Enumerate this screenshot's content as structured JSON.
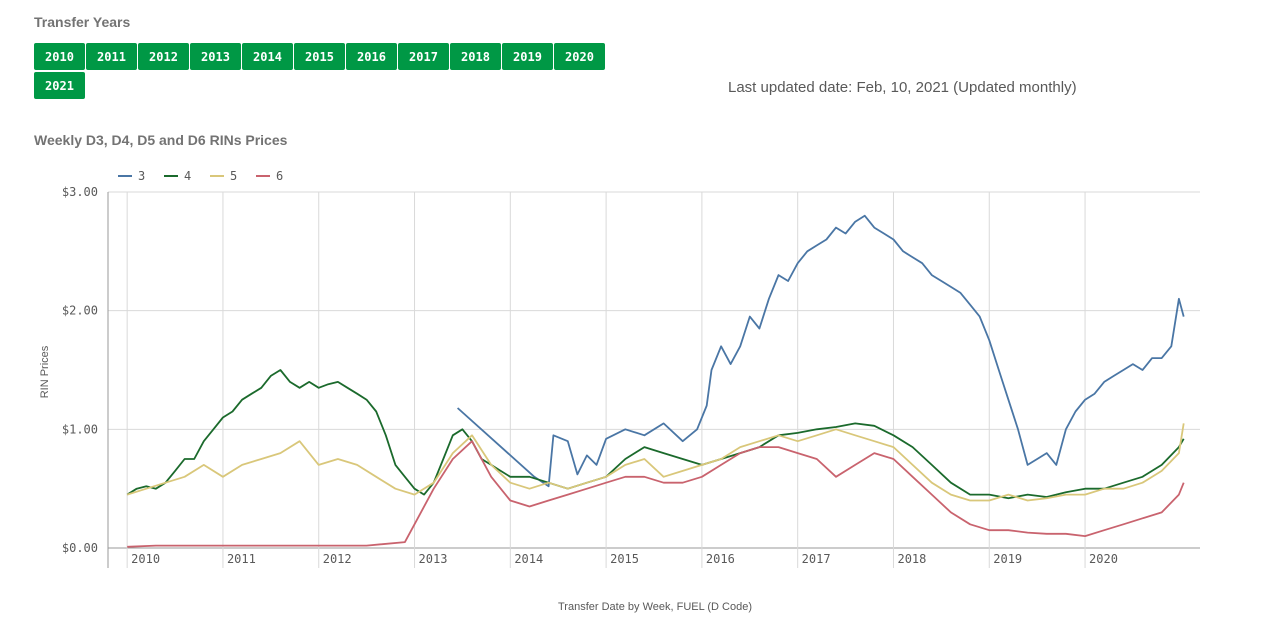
{
  "filter": {
    "title": "Transfer Years",
    "years": [
      "2010",
      "2011",
      "2012",
      "2013",
      "2014",
      "2015",
      "2016",
      "2017",
      "2018",
      "2019",
      "2020",
      "2021"
    ]
  },
  "last_updated": "Last updated date: Feb, 10, 2021 (Updated monthly)",
  "colors": {
    "button": "#009845",
    "d3": "#4a76a5",
    "d4": "#1b6a2c",
    "d5": "#d9c77a",
    "d6": "#c9636e",
    "grid": "#d9d9d9"
  },
  "chart_data": {
    "type": "line",
    "title": "Weekly D3, D4, D5 and D6 RINs Prices",
    "xlabel": "Transfer Date by Week, FUEL (D Code)",
    "ylabel": "RIN Prices",
    "ylim": [
      0,
      3
    ],
    "xlim": [
      2009.8,
      2021.2
    ],
    "y_ticks": [
      0,
      1,
      2,
      3
    ],
    "y_tick_labels": [
      "$0.00",
      "$1.00",
      "$2.00",
      "$3.00"
    ],
    "x_ticks": [
      2010,
      2011,
      2012,
      2013,
      2014,
      2015,
      2016,
      2017,
      2018,
      2019,
      2020
    ],
    "x_tick_labels": [
      "2010",
      "2011",
      "2012",
      "2013",
      "2014",
      "2015",
      "2016",
      "2017",
      "2018",
      "2019",
      "2020"
    ],
    "grid": true,
    "legend_position": "top-left",
    "series": [
      {
        "name": "3",
        "color": "#4a76a5",
        "x": [
          2013.45,
          2014.25,
          2014.4,
          2014.45,
          2014.6,
          2014.7,
          2014.8,
          2014.9,
          2015.0,
          2015.2,
          2015.4,
          2015.6,
          2015.8,
          2015.95,
          2016.05,
          2016.1,
          2016.2,
          2016.3,
          2016.4,
          2016.5,
          2016.6,
          2016.7,
          2016.8,
          2016.9,
          2017.0,
          2017.1,
          2017.2,
          2017.3,
          2017.4,
          2017.5,
          2017.6,
          2017.7,
          2017.8,
          2017.9,
          2018.0,
          2018.1,
          2018.2,
          2018.3,
          2018.4,
          2018.5,
          2018.6,
          2018.7,
          2018.8,
          2018.9,
          2019.0,
          2019.1,
          2019.2,
          2019.3,
          2019.4,
          2019.5,
          2019.6,
          2019.7,
          2019.8,
          2019.9,
          2020.0,
          2020.1,
          2020.2,
          2020.3,
          2020.4,
          2020.5,
          2020.6,
          2020.7,
          2020.8,
          2020.9,
          2020.98,
          2021.03
        ],
        "y": [
          1.18,
          0.6,
          0.52,
          0.95,
          0.9,
          0.62,
          0.78,
          0.7,
          0.92,
          1.0,
          0.95,
          1.05,
          0.9,
          1.0,
          1.2,
          1.5,
          1.7,
          1.55,
          1.7,
          1.95,
          1.85,
          2.1,
          2.3,
          2.25,
          2.4,
          2.5,
          2.55,
          2.6,
          2.7,
          2.65,
          2.75,
          2.8,
          2.7,
          2.65,
          2.6,
          2.5,
          2.45,
          2.4,
          2.3,
          2.25,
          2.2,
          2.15,
          2.05,
          1.95,
          1.75,
          1.5,
          1.25,
          1.0,
          0.7,
          0.75,
          0.8,
          0.7,
          1.0,
          1.15,
          1.25,
          1.3,
          1.4,
          1.45,
          1.5,
          1.55,
          1.5,
          1.6,
          1.6,
          1.7,
          2.1,
          1.95
        ]
      },
      {
        "name": "4",
        "color": "#1b6a2c",
        "x": [
          2010.0,
          2010.1,
          2010.2,
          2010.3,
          2010.4,
          2010.5,
          2010.6,
          2010.7,
          2010.8,
          2010.9,
          2011.0,
          2011.1,
          2011.2,
          2011.3,
          2011.4,
          2011.5,
          2011.6,
          2011.7,
          2011.8,
          2011.9,
          2012.0,
          2012.1,
          2012.2,
          2012.3,
          2012.4,
          2012.5,
          2012.6,
          2012.7,
          2012.8,
          2012.9,
          2013.0,
          2013.1,
          2013.2,
          2013.3,
          2013.4,
          2013.5,
          2013.6,
          2013.7,
          2013.8,
          2013.9,
          2014.0,
          2014.2,
          2014.4,
          2014.6,
          2014.8,
          2015.0,
          2015.2,
          2015.4,
          2015.6,
          2015.8,
          2016.0,
          2016.2,
          2016.4,
          2016.6,
          2016.8,
          2017.0,
          2017.2,
          2017.4,
          2017.6,
          2017.8,
          2018.0,
          2018.2,
          2018.4,
          2018.6,
          2018.8,
          2019.0,
          2019.2,
          2019.4,
          2019.6,
          2019.8,
          2020.0,
          2020.2,
          2020.4,
          2020.6,
          2020.8,
          2020.98,
          2021.03
        ],
        "y": [
          0.45,
          0.5,
          0.52,
          0.5,
          0.55,
          0.65,
          0.75,
          0.75,
          0.9,
          1.0,
          1.1,
          1.15,
          1.25,
          1.3,
          1.35,
          1.45,
          1.5,
          1.4,
          1.35,
          1.4,
          1.35,
          1.38,
          1.4,
          1.35,
          1.3,
          1.25,
          1.15,
          0.95,
          0.7,
          0.6,
          0.5,
          0.45,
          0.55,
          0.75,
          0.95,
          1.0,
          0.9,
          0.75,
          0.7,
          0.65,
          0.6,
          0.6,
          0.55,
          0.5,
          0.55,
          0.6,
          0.75,
          0.85,
          0.8,
          0.75,
          0.7,
          0.75,
          0.8,
          0.85,
          0.95,
          0.97,
          1.0,
          1.02,
          1.05,
          1.03,
          0.95,
          0.85,
          0.7,
          0.55,
          0.45,
          0.45,
          0.42,
          0.45,
          0.43,
          0.47,
          0.5,
          0.5,
          0.55,
          0.6,
          0.7,
          0.85,
          0.92
        ]
      },
      {
        "name": "5",
        "color": "#d9c77a",
        "x": [
          2010.0,
          2010.2,
          2010.4,
          2010.6,
          2010.8,
          2011.0,
          2011.2,
          2011.4,
          2011.6,
          2011.8,
          2012.0,
          2012.2,
          2012.4,
          2012.6,
          2012.8,
          2013.0,
          2013.2,
          2013.4,
          2013.6,
          2013.8,
          2014.0,
          2014.2,
          2014.4,
          2014.6,
          2014.8,
          2015.0,
          2015.2,
          2015.4,
          2015.6,
          2015.8,
          2016.0,
          2016.2,
          2016.4,
          2016.6,
          2016.8,
          2017.0,
          2017.2,
          2017.4,
          2017.6,
          2017.8,
          2018.0,
          2018.2,
          2018.4,
          2018.6,
          2018.8,
          2019.0,
          2019.2,
          2019.4,
          2019.6,
          2019.8,
          2020.0,
          2020.2,
          2020.4,
          2020.6,
          2020.8,
          2020.98,
          2021.03
        ],
        "y": [
          0.45,
          0.5,
          0.55,
          0.6,
          0.7,
          0.6,
          0.7,
          0.75,
          0.8,
          0.9,
          0.7,
          0.75,
          0.7,
          0.6,
          0.5,
          0.45,
          0.55,
          0.8,
          0.95,
          0.7,
          0.55,
          0.5,
          0.55,
          0.5,
          0.55,
          0.6,
          0.7,
          0.75,
          0.6,
          0.65,
          0.7,
          0.75,
          0.85,
          0.9,
          0.95,
          0.9,
          0.95,
          1.0,
          0.95,
          0.9,
          0.85,
          0.7,
          0.55,
          0.45,
          0.4,
          0.4,
          0.45,
          0.4,
          0.42,
          0.45,
          0.45,
          0.5,
          0.5,
          0.55,
          0.65,
          0.8,
          1.05
        ]
      },
      {
        "name": "6",
        "color": "#c9636e",
        "x": [
          2010.0,
          2010.3,
          2010.6,
          2010.8,
          2011.0,
          2011.5,
          2012.0,
          2012.5,
          2012.9,
          2013.0,
          2013.2,
          2013.4,
          2013.6,
          2013.8,
          2014.0,
          2014.2,
          2014.4,
          2014.6,
          2014.8,
          2015.0,
          2015.2,
          2015.4,
          2015.6,
          2015.8,
          2016.0,
          2016.2,
          2016.4,
          2016.6,
          2016.8,
          2017.0,
          2017.2,
          2017.4,
          2017.6,
          2017.8,
          2018.0,
          2018.2,
          2018.4,
          2018.6,
          2018.8,
          2019.0,
          2019.2,
          2019.4,
          2019.6,
          2019.8,
          2020.0,
          2020.2,
          2020.4,
          2020.6,
          2020.8,
          2020.98,
          2021.03
        ],
        "y": [
          0.01,
          0.02,
          0.02,
          0.02,
          0.02,
          0.02,
          0.02,
          0.02,
          0.05,
          0.2,
          0.5,
          0.75,
          0.9,
          0.6,
          0.4,
          0.35,
          0.4,
          0.45,
          0.5,
          0.55,
          0.6,
          0.6,
          0.55,
          0.55,
          0.6,
          0.7,
          0.8,
          0.85,
          0.85,
          0.8,
          0.75,
          0.6,
          0.7,
          0.8,
          0.75,
          0.6,
          0.45,
          0.3,
          0.2,
          0.15,
          0.15,
          0.13,
          0.12,
          0.12,
          0.1,
          0.15,
          0.2,
          0.25,
          0.3,
          0.45,
          0.55
        ]
      }
    ]
  }
}
